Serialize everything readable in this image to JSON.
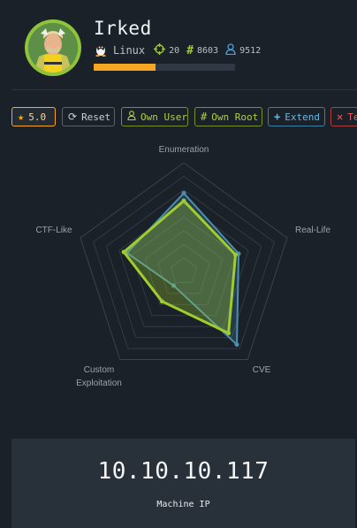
{
  "machine": {
    "name": "Irked",
    "os": "Linux",
    "points": "20",
    "user_owns": "8603",
    "root_owns": "9512",
    "progress": 0.44
  },
  "toolbar": {
    "rating": "5.0",
    "reset": "Reset",
    "own_user": "Own User",
    "own_root": "Own Root",
    "extend": "Extend",
    "terminate": "Te"
  },
  "chart_data": {
    "type": "radar",
    "axes": [
      "Enumeration",
      "Real-Life",
      "CVE",
      "Custom Exploitation",
      "CTF-Like"
    ],
    "axis_labels": [
      [
        "Enumeration"
      ],
      [
        "Real-Life"
      ],
      [
        "CVE"
      ],
      [
        "Custom",
        "Exploitation"
      ],
      [
        "CTF-Like"
      ]
    ],
    "range": [
      0,
      10
    ],
    "grid_levels": 8,
    "series": [
      {
        "values": [
          7.2,
          5.3,
          8.3,
          1.6,
          5.5
        ],
        "color": "#4a8fb0"
      },
      {
        "values": [
          6.5,
          5.0,
          7.0,
          3.4,
          5.8
        ],
        "color": "#9fcc2e"
      }
    ]
  },
  "ip": {
    "address": "10.10.10.117",
    "label": "Machine IP"
  },
  "colors": {
    "accent_yellow": "#f5a623",
    "accent_green": "#9fcc2e",
    "accent_blue": "#4a8fb0",
    "accent_red": "#e04d4d"
  }
}
